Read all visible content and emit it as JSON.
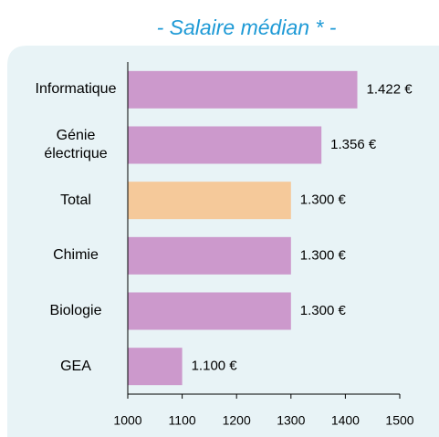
{
  "chart_data": {
    "type": "hbar",
    "title": "- Salaire médian * -",
    "categories": [
      "Informatique",
      "Génie électrique",
      "Total",
      "Chimie",
      "Biologie",
      "GEA"
    ],
    "values": [
      1422,
      1356,
      1300,
      1300,
      1300,
      1100
    ],
    "value_labels": [
      "1.422 €",
      "1.356 €",
      "1.300 €",
      "1.300 €",
      "1.300 €",
      "1.100 €"
    ],
    "colors": [
      "#cc99cc",
      "#cc99cc",
      "#f5c99a",
      "#cc99cc",
      "#cc99cc",
      "#cc99cc"
    ],
    "xlim": [
      1000,
      1500
    ],
    "xticks": [
      1000,
      1100,
      1200,
      1300,
      1400,
      1500
    ],
    "grid": false
  }
}
